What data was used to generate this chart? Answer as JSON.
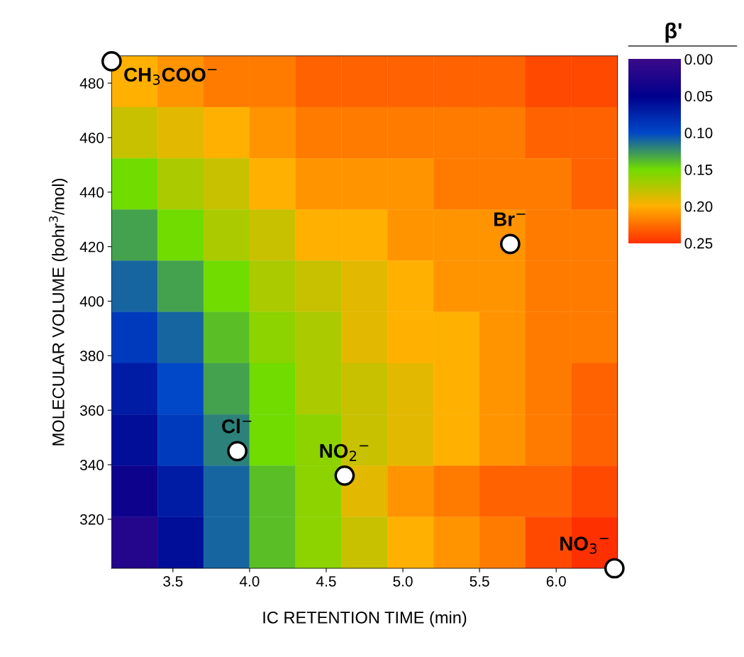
{
  "chart_data": [
    {
      "type": "heatmap",
      "clabel": "β'",
      "tick_labels": false,
      "categories": [
        null,
        null,
        null,
        null,
        null,
        null,
        null,
        null,
        null,
        null,
        null
      ],
      "y_categories": [
        null,
        null,
        null,
        null,
        null,
        null,
        null,
        null,
        null,
        null
      ],
      "cells": [
        [
          0.2,
          0.21,
          0.22,
          0.22,
          0.23,
          0.23,
          0.23,
          0.23,
          0.23,
          0.24,
          0.24
        ],
        [
          0.18,
          0.19,
          0.2,
          0.21,
          0.22,
          0.22,
          0.22,
          0.22,
          0.22,
          0.23,
          0.23
        ],
        [
          0.15,
          0.17,
          0.18,
          0.2,
          0.21,
          0.21,
          0.21,
          0.22,
          0.22,
          0.22,
          0.23
        ],
        [
          0.13,
          0.15,
          0.17,
          0.18,
          0.2,
          0.2,
          0.21,
          0.21,
          0.21,
          0.22,
          0.22
        ],
        [
          0.11,
          0.13,
          0.15,
          0.17,
          0.18,
          0.19,
          0.2,
          0.21,
          0.21,
          0.22,
          0.22
        ],
        [
          0.09,
          0.11,
          0.14,
          0.16,
          0.17,
          0.19,
          0.2,
          0.2,
          0.21,
          0.22,
          0.22
        ],
        [
          0.07,
          0.1,
          0.13,
          0.15,
          0.17,
          0.18,
          0.19,
          0.2,
          0.21,
          0.22,
          0.23
        ],
        [
          0.06,
          0.09,
          0.12,
          0.15,
          0.16,
          0.18,
          0.19,
          0.2,
          0.21,
          0.22,
          0.23
        ],
        [
          0.04,
          0.07,
          0.11,
          0.14,
          0.16,
          0.19,
          0.21,
          0.22,
          0.23,
          0.23,
          0.24
        ],
        [
          0.02,
          0.06,
          0.11,
          0.14,
          0.16,
          0.18,
          0.2,
          0.21,
          0.22,
          0.24,
          0.25
        ]
      ],
      "colors": [
        "#3a0a8a",
        "#00008c",
        "#0048c8",
        "#70dc00",
        "#ffb000",
        "#ff3000"
      ],
      "clim": [
        0,
        0.25
      ],
      "cticks": [
        {
          "value": 0,
          "label": "0.00"
        },
        {
          "value": 0.05,
          "label": "0.05"
        },
        {
          "value": 0.1,
          "label": "0.10"
        },
        {
          "value": 0.15,
          "label": "0.15"
        },
        {
          "value": 0.2,
          "label": "0.20"
        },
        {
          "value": 0.25,
          "label": "0.25"
        }
      ]
    },
    {
      "type": "scatter",
      "xlabel": "IC RETENTION TIME (min)",
      "ylabel": "MOLECULAR VOLUME (bohr$^{3}$/mol)",
      "xlim": [
        3.1,
        6.4
      ],
      "ylim": [
        302,
        490
      ],
      "xticks": [
        {
          "value": 3.5,
          "label": "3.5"
        },
        {
          "value": 4,
          "label": "4.0"
        },
        {
          "value": 4.5,
          "label": "4.5"
        },
        {
          "value": 5,
          "label": "5.0"
        },
        {
          "value": 5.5,
          "label": "5.5"
        },
        {
          "value": 6,
          "label": "6.0"
        }
      ],
      "yticks": [
        320,
        340,
        360,
        380,
        400,
        420,
        440,
        460,
        480
      ],
      "marker": "circle",
      "series": [
        {
          "color": "#ffffff",
          "x": [
            3.1,
            3.92,
            4.62,
            5.7,
            6.38
          ],
          "values": [
            488,
            345,
            336,
            421,
            302
          ]
        }
      ],
      "annotations": [
        "CH$_{3}$COO$^{−}$",
        "Cl$^{−}$",
        "NO$_{2}$$^{−}$",
        "Br$^{−}$",
        "NO$_{3}$$^{−}$"
      ]
    }
  ]
}
